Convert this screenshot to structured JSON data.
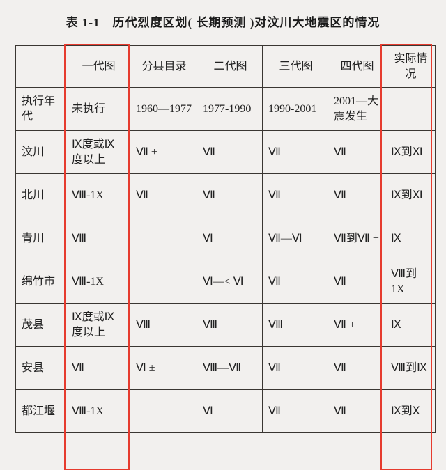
{
  "title": "表 1-1　历代烈度区划( 长期预测 )对汶川大地震区的情况",
  "columns": [
    "",
    "一代图",
    "分县目录",
    "二代图",
    "三代图",
    "四代图",
    "实际情况"
  ],
  "rows": [
    {
      "label": "执行年代",
      "cells": [
        "未执行",
        "1960—1977",
        "1977-1990",
        "1990-2001",
        "2001—大震发生",
        ""
      ]
    },
    {
      "label": "汶川",
      "cells": [
        "Ⅸ度或Ⅸ度以上",
        "Ⅶ +",
        "Ⅶ",
        "Ⅶ",
        "Ⅶ",
        "Ⅸ到Ⅺ"
      ]
    },
    {
      "label": "北川",
      "cells": [
        "Ⅷ-1X",
        "Ⅶ",
        "Ⅶ",
        "Ⅶ",
        "Ⅶ",
        "Ⅸ到Ⅺ"
      ]
    },
    {
      "label": "青川",
      "cells": [
        "Ⅷ",
        "",
        "Ⅵ",
        "Ⅶ—Ⅵ",
        "Ⅶ到Ⅶ +",
        "Ⅸ"
      ]
    },
    {
      "label": "绵竹市",
      "cells": [
        "Ⅷ-1X",
        "",
        "Ⅵ—< Ⅵ",
        "Ⅶ",
        "Ⅶ",
        "Ⅷ到 1X"
      ]
    },
    {
      "label": "茂县",
      "cells": [
        "Ⅸ度或Ⅸ度以上",
        "Ⅷ",
        "Ⅷ",
        "Ⅷ",
        "Ⅶ +",
        "Ⅸ"
      ]
    },
    {
      "label": "安县",
      "cells": [
        "Ⅶ",
        "Ⅵ ±",
        "Ⅷ—Ⅶ",
        "Ⅶ",
        "Ⅶ",
        "Ⅷ到Ⅸ"
      ]
    },
    {
      "label": "都江堰",
      "cells": [
        "Ⅷ-1X",
        "",
        "Ⅵ",
        "Ⅶ",
        "Ⅶ",
        "Ⅸ到Ⅹ"
      ]
    }
  ]
}
